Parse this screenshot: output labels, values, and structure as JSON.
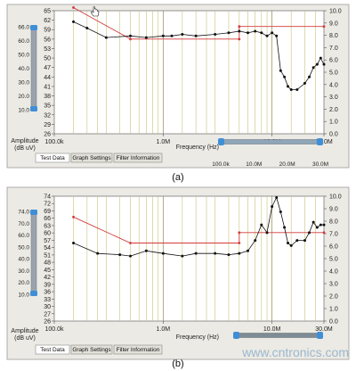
{
  "watermark": "www.cntronics.com",
  "colors": {
    "limit": "#d23a3a",
    "trace": "#111111",
    "peaks": "#111111",
    "grid": "#c9c27a",
    "panel_bg": "#ffffff",
    "slider": "#3f8fd6"
  },
  "panels": [
    {
      "caption": "(a)",
      "y_title": [
        "Amplitude",
        "(dB uV)"
      ],
      "y_left_ticks": [
        "65",
        "62",
        "59",
        "56",
        "53",
        "50",
        "47",
        "44",
        "41",
        "38",
        "35",
        "32",
        "29",
        "26"
      ],
      "y_right_ticks": [
        "10.0",
        "9.0",
        "8.0",
        "7.0",
        "6.0",
        "5.0",
        "4.0",
        "3.0",
        "2.0",
        "1.0",
        "0.0"
      ],
      "slider_ticks": [
        "66.0",
        "60.0",
        "50.0",
        "40.0",
        "30.0",
        "20.0",
        "10.0"
      ],
      "x_ticks": [
        "100.0k",
        "1.0M",
        "10.0M",
        "30.0M"
      ],
      "x_title": "Frequency (Hz)",
      "zoom_ticks": [
        "100.0k",
        "10.0M",
        "20.0M",
        "30.0M"
      ],
      "tabs": [
        "Test Data",
        "Graph Settings",
        "Filter Information"
      ],
      "icons": [
        "hand-cursor-icon"
      ],
      "chart_data": {
        "type": "line",
        "x_scale": "log",
        "xlim": [
          100000,
          30000000
        ],
        "ylim": [
          26,
          65
        ],
        "y2lim": [
          0,
          10
        ],
        "series": [
          {
            "points": [
              [
                150000,
                66
              ],
              [
                500000,
                56
              ],
              [
                5000000,
                56
              ],
              [
                5000000,
                60
              ],
              [
                30000000,
                60
              ]
            ]
          },
          {
            "points": [
              [
                150000,
                61.5
              ],
              [
                200000,
                59.5
              ],
              [
                300000,
                56.5
              ],
              [
                500000,
                57.0
              ],
              [
                700000,
                56.5
              ],
              [
                1000000,
                57.0
              ],
              [
                1200000,
                57.0
              ],
              [
                1500000,
                57.5
              ],
              [
                2000000,
                57.0
              ],
              [
                3000000,
                57.5
              ],
              [
                4000000,
                58.0
              ],
              [
                5000000,
                58.5
              ],
              [
                6000000,
                58.0
              ],
              [
                7000000,
                58.5
              ],
              [
                8000000,
                58.0
              ],
              [
                9000000,
                57.0
              ],
              [
                10000000,
                58.0
              ],
              [
                11000000,
                57.0
              ],
              [
                12000000,
                46.0
              ],
              [
                13000000,
                44.0
              ],
              [
                14000000,
                41.0
              ],
              [
                15000000,
                40.0
              ],
              [
                17000000,
                40.0
              ],
              [
                20000000,
                42.0
              ],
              [
                22000000,
                44.0
              ],
              [
                24000000,
                47.0
              ],
              [
                26000000,
                48.0
              ],
              [
                28000000,
                50.0
              ],
              [
                30000000,
                48.0
              ]
            ]
          }
        ]
      }
    },
    {
      "caption": "(b)",
      "y_title": [
        "Amplitude",
        "(dB uV)"
      ],
      "y_left_ticks": [
        "74",
        "72",
        "69",
        "66",
        "63",
        "60",
        "57",
        "54",
        "51",
        "48",
        "45",
        "42",
        "39",
        "36",
        "33",
        "30",
        "27",
        "26"
      ],
      "y_right_ticks": [
        "10.0",
        "9.0",
        "8.0",
        "7.0",
        "6.0",
        "5.0",
        "4.0",
        "3.0",
        "2.0",
        "1.0",
        "0.0"
      ],
      "slider_ticks": [
        "74.0",
        "70.0",
        "60.0",
        "50.0",
        "40.0",
        "30.0",
        "20.0",
        "10.0"
      ],
      "x_ticks": [
        "100.0k",
        "1.0M",
        "10.0M",
        "30.0M"
      ],
      "x_title": "Frequency (Hz)",
      "tabs": [
        "Test Data",
        "Graph Settings",
        "Filter Information"
      ],
      "chart_data": {
        "type": "line",
        "x_scale": "log",
        "xlim": [
          100000,
          30000000
        ],
        "ylim": [
          26,
          74
        ],
        "y2lim": [
          0,
          10
        ],
        "series": [
          {
            "points": [
              [
                150000,
                66
              ],
              [
                500000,
                56
              ],
              [
                5000000,
                56
              ],
              [
                5000000,
                60
              ],
              [
                30000000,
                60
              ]
            ]
          },
          {
            "points": [
              [
                150000,
                56.0
              ],
              [
                250000,
                52.0
              ],
              [
                400000,
                51.5
              ],
              [
                500000,
                51.0
              ],
              [
                700000,
                53.0
              ],
              [
                1000000,
                52.0
              ],
              [
                1500000,
                51.0
              ],
              [
                2000000,
                52.0
              ],
              [
                3000000,
                52.0
              ],
              [
                4000000,
                51.5
              ],
              [
                5000000,
                52.0
              ],
              [
                6000000,
                53.0
              ],
              [
                7000000,
                57.0
              ],
              [
                8000000,
                63.0
              ],
              [
                9000000,
                60.0
              ],
              [
                10000000,
                70.0
              ],
              [
                11000000,
                73.5
              ],
              [
                12000000,
                68.0
              ],
              [
                13000000,
                62.0
              ],
              [
                14000000,
                56.0
              ],
              [
                15000000,
                55.0
              ],
              [
                17000000,
                57.0
              ],
              [
                20000000,
                57.0
              ],
              [
                22000000,
                60.0
              ],
              [
                24000000,
                64.0
              ],
              [
                26000000,
                62.0
              ],
              [
                28000000,
                63.0
              ],
              [
                30000000,
                63.0
              ]
            ]
          }
        ]
      }
    }
  ]
}
